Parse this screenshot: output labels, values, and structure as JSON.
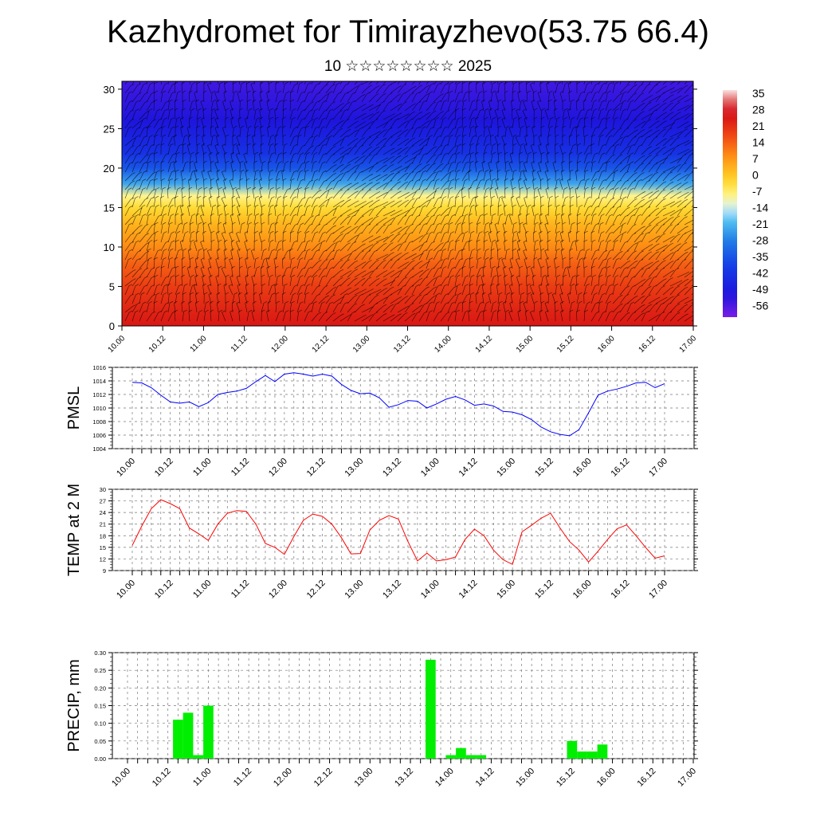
{
  "header": {
    "title": "Kazhydromet for Timirayzhevo(53.75 66.4)",
    "subtitle": "10 ☆☆☆☆☆☆☆☆ 2025"
  },
  "chart_data": [
    {
      "type": "heatmap",
      "title": "",
      "xlabel": "",
      "ylabel": "",
      "x_ticks": [
        "10.00",
        "10.12",
        "11.00",
        "11.12",
        "12.00",
        "12.12",
        "13.00",
        "13.12",
        "14.00",
        "14.12",
        "15.00",
        "15.12",
        "16.00",
        "16.12",
        "17.00"
      ],
      "y_ticks": [
        0,
        5,
        10,
        15,
        20,
        25,
        30
      ],
      "ylim": [
        0,
        31
      ],
      "colorbar_labels": [
        "35",
        "28",
        "21",
        "14",
        "7",
        "0",
        "-7",
        "-14",
        "-21",
        "-28",
        "-35",
        "-42",
        "-49",
        "-56"
      ],
      "colorbar_range": [
        -60,
        38
      ],
      "temperature_profile": {
        "heights": [
          0,
          2,
          5,
          8,
          10,
          13,
          15,
          16.5,
          18,
          20,
          22,
          24,
          26,
          31
        ],
        "values": [
          26,
          24,
          20,
          15,
          10,
          4,
          -2,
          -8,
          -22,
          -34,
          -42,
          -46,
          -50,
          -54
        ]
      },
      "overlay": "wind barbs and contour lines"
    },
    {
      "type": "line",
      "ylabel": "PMSL",
      "ylim": [
        1004,
        1016
      ],
      "y_ticks": [
        "1004",
        "1006",
        "1008",
        "1010",
        "1012",
        "1014",
        "1016"
      ],
      "x_ticks": [
        "10.00",
        "10.12",
        "11.00",
        "11.12",
        "12.00",
        "12.12",
        "13.00",
        "13.12",
        "14.00",
        "14.12",
        "15.00",
        "15.12",
        "16.00",
        "16.12",
        "17.00"
      ],
      "color": "#0000ff",
      "series": [
        {
          "values": [
            1013.8,
            1013.7,
            1013.0,
            1011.9,
            1010.9,
            1010.7,
            1010.9,
            1010.2,
            1010.8,
            1012.0,
            1012.3,
            1012.5,
            1012.9,
            1013.9,
            1014.8,
            1013.9,
            1015.0,
            1015.2,
            1015.0,
            1014.7,
            1015.0,
            1014.7,
            1013.5,
            1012.6,
            1012.1,
            1012.2,
            1011.5,
            1010.1,
            1010.5,
            1011.1,
            1011.0,
            1010.0,
            1010.6,
            1011.3,
            1011.7,
            1011.2,
            1010.4,
            1010.6,
            1010.3,
            1009.5,
            1009.4,
            1009.0,
            1008.3,
            1007.2,
            1006.5,
            1006.1,
            1005.9,
            1006.8,
            1009.3,
            1011.9,
            1012.5,
            1012.8,
            1013.2,
            1013.7,
            1013.8,
            1013.0,
            1013.6
          ]
        }
      ]
    },
    {
      "type": "line",
      "ylabel": "TEMP at 2 M",
      "ylim": [
        9,
        30
      ],
      "y_ticks": [
        "9",
        "12",
        "15",
        "18",
        "21",
        "24",
        "27",
        "30"
      ],
      "x_ticks": [
        "10.00",
        "10.12",
        "11.00",
        "11.12",
        "12.00",
        "12.12",
        "13.00",
        "13.12",
        "14.00",
        "14.12",
        "15.00",
        "15.12",
        "16.00",
        "16.12",
        "17.00"
      ],
      "color": "#ff0000",
      "series": [
        {
          "values": [
            15.5,
            20.5,
            25.0,
            27.3,
            26.3,
            25.0,
            20.0,
            18.5,
            16.8,
            21.0,
            23.8,
            24.5,
            24.3,
            21.0,
            16.0,
            15.0,
            13.2,
            17.8,
            22.0,
            23.6,
            23.0,
            21.0,
            17.5,
            13.3,
            13.4,
            19.5,
            22.0,
            23.2,
            22.3,
            16.5,
            11.5,
            13.5,
            11.5,
            11.8,
            12.5,
            17.0,
            19.7,
            18.0,
            14.3,
            11.8,
            10.6,
            19.0,
            20.7,
            22.5,
            23.8,
            20.0,
            16.5,
            14.3,
            11.2,
            14.0,
            17.0,
            19.8,
            20.8,
            18.0,
            15.0,
            12.2,
            12.8
          ]
        }
      ]
    },
    {
      "type": "bar",
      "ylabel": "PRECIP, mm",
      "ylim": [
        0,
        0.3
      ],
      "y_ticks": [
        "0.00",
        "0.05",
        "0.10",
        "0.15",
        "0.20",
        "0.25",
        "0.30"
      ],
      "x_ticks": [
        "10.00",
        "10.12",
        "11.00",
        "11.12",
        "12.00",
        "12.12",
        "13.00",
        "13.12",
        "14.00",
        "14.12",
        "15.00",
        "15.12",
        "16.00",
        "16.12",
        "17.00"
      ],
      "color": "#00ee00",
      "series": [
        {
          "values": [
            0,
            0,
            0,
            0,
            0,
            0.11,
            0.13,
            0.01,
            0.15,
            0,
            0,
            0,
            0,
            0,
            0,
            0,
            0,
            0,
            0,
            0,
            0,
            0,
            0,
            0,
            0,
            0,
            0,
            0,
            0,
            0,
            0.28,
            0,
            0.01,
            0.03,
            0.01,
            0.01,
            0,
            0,
            0,
            0,
            0,
            0,
            0,
            0,
            0.05,
            0.02,
            0.02,
            0.04,
            0,
            0,
            0,
            0,
            0,
            0,
            0,
            0,
            0
          ]
        }
      ]
    }
  ]
}
